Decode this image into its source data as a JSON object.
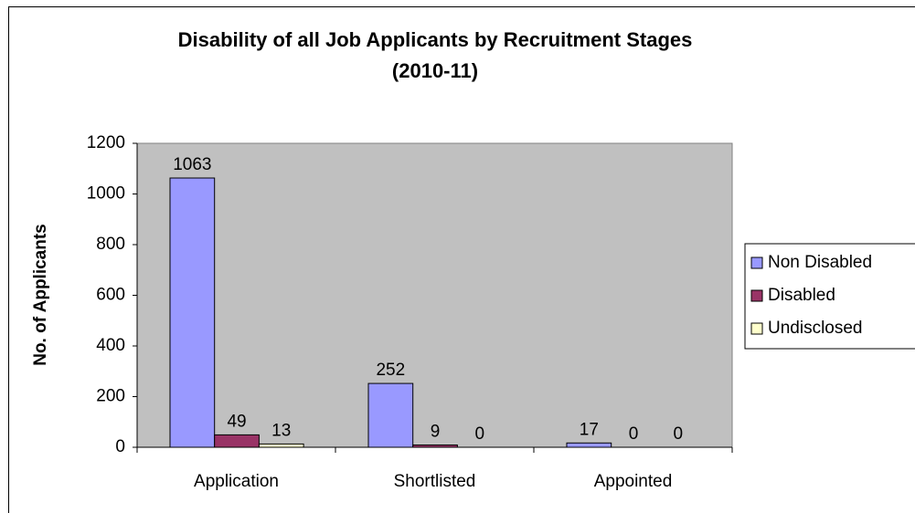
{
  "chart_data": {
    "type": "bar",
    "title": [
      "Disability of all Job Applicants by Recruitment Stages",
      "(2010-11)"
    ],
    "y_label": "No. of Applicants",
    "categories": [
      "Application",
      "Shortlisted",
      "Appointed"
    ],
    "series": [
      {
        "name": "Non Disabled",
        "color": "#9999ff",
        "values": [
          1063,
          252,
          17
        ]
      },
      {
        "name": "Disabled",
        "color": "#993366",
        "values": [
          49,
          9,
          0
        ]
      },
      {
        "name": "Undisclosed",
        "color": "#ffffcc",
        "values": [
          13,
          0,
          0
        ]
      }
    ],
    "ylim": [
      0,
      1200
    ],
    "yticks": [
      0,
      200,
      400,
      600,
      800,
      1000,
      1200
    ],
    "grid": false,
    "legend": "right",
    "plot_background": "#c0c0c0"
  }
}
